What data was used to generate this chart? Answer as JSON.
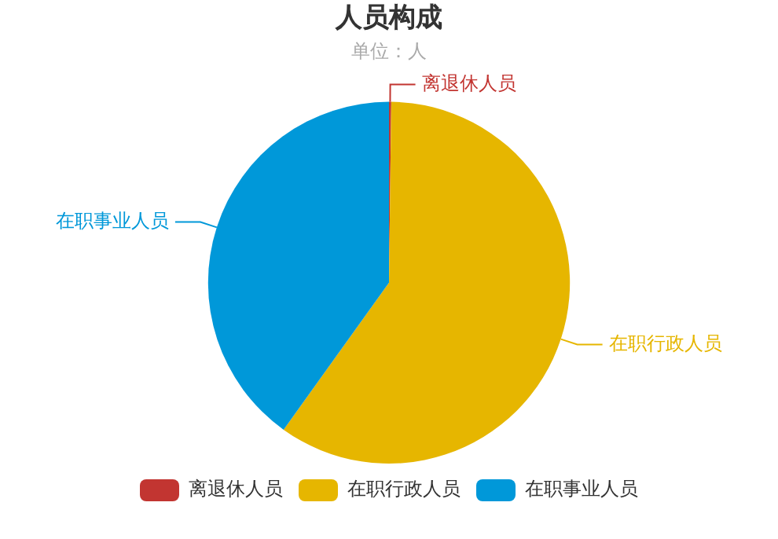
{
  "chart_data": {
    "type": "pie",
    "title": "人员构成",
    "subtitle": "单位：人",
    "categories": [
      "离退休人员",
      "在职行政人员",
      "在职事业人员"
    ],
    "values": [
      0.2,
      59.7,
      40.1
    ],
    "colors": [
      "#c23531",
      "#e6b600",
      "#0098d9"
    ],
    "legend": "bottom"
  }
}
